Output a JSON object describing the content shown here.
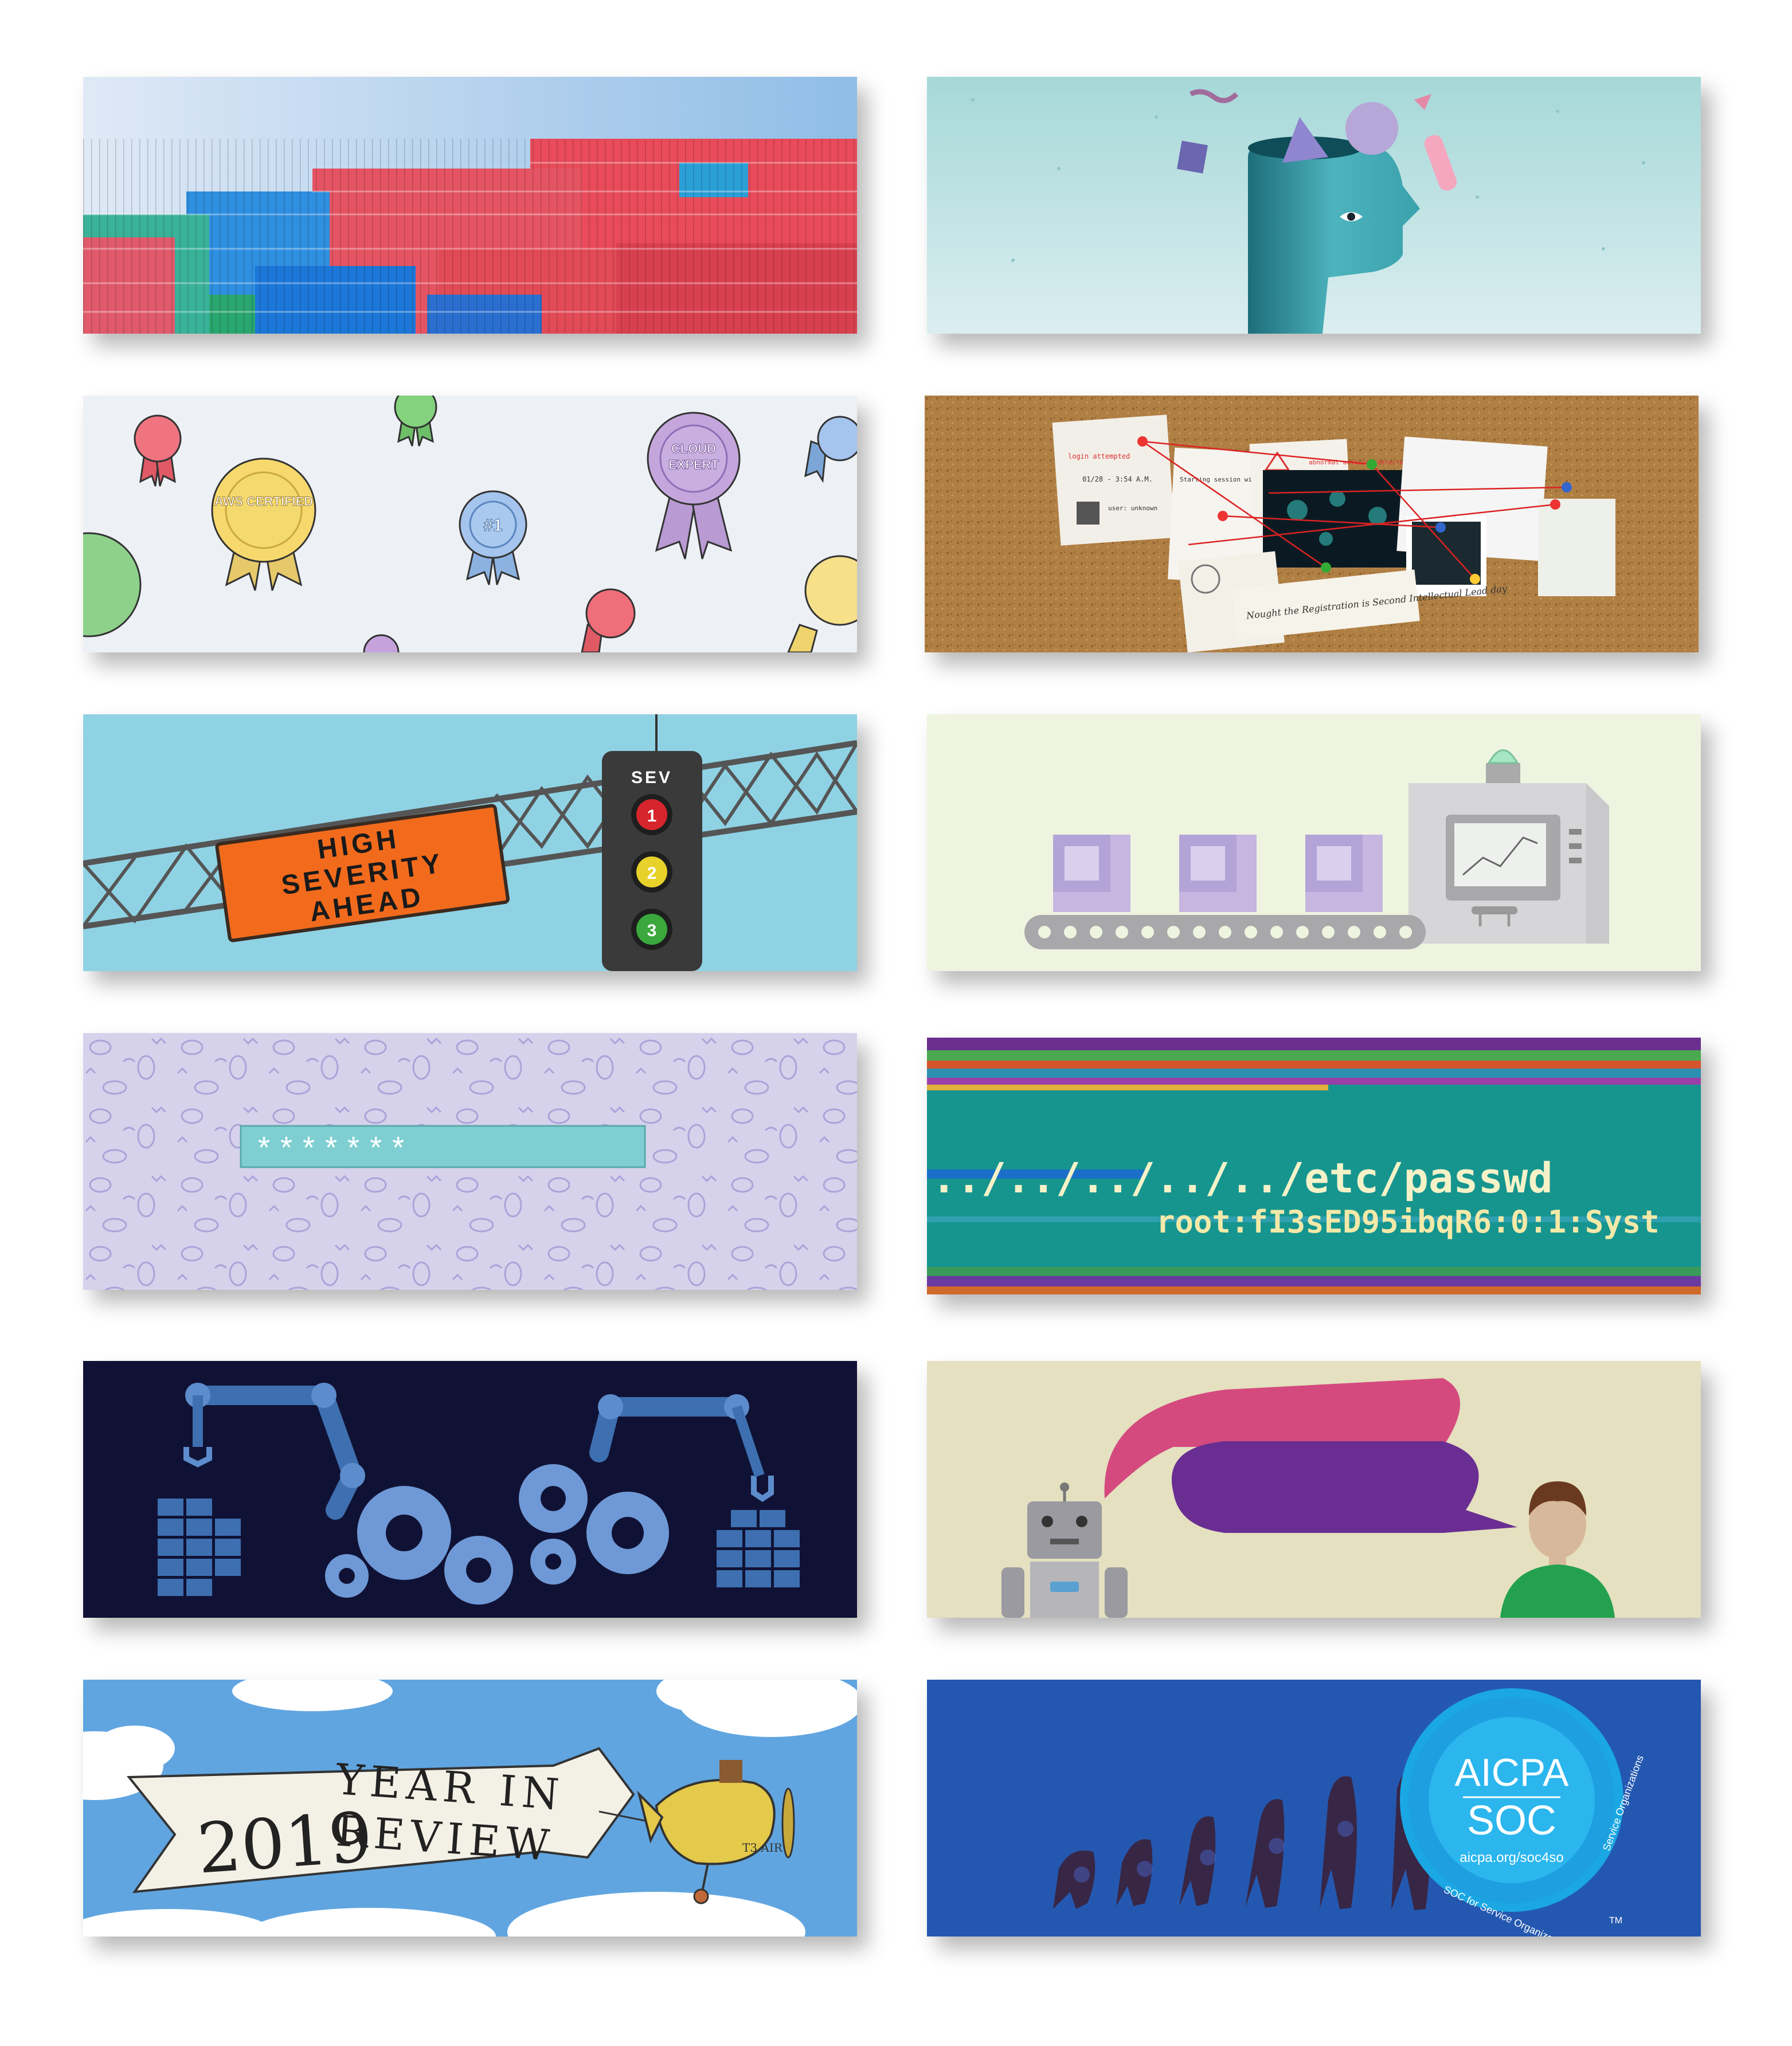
{
  "cards": {
    "severity": {
      "line1": "HIGH",
      "line2": "SEVERITY",
      "line3": "AHEAD",
      "light_title": "SEV",
      "levels": [
        "1",
        "2",
        "3"
      ]
    },
    "password": {
      "masked": "*******"
    },
    "passwd": {
      "path": "../../../../../etc/passwd",
      "output": "root:fI3sED95ibqR6:0:1:Syst"
    },
    "review": {
      "year": "2019",
      "word1": "YEAR IN",
      "word2": "REVIEW",
      "plane": "T3 AIR"
    },
    "certified": {
      "aws": "AWS CERTIFIED",
      "cloud1": "CLOUD",
      "cloud2": "EXPERT",
      "number": "#1"
    },
    "soc": {
      "title": "AICPA",
      "subtitle": "SOC",
      "url": "aicpa.org/soc4so",
      "ring_left": "SOC for Service Organizations",
      "ring_right": "Service Organizations",
      "tm": "TM"
    },
    "evidence": {
      "note1": "login attempted",
      "note1_time": "01/28 - 3:54 A.M.",
      "note1_user": "user: unknown",
      "note2": "abnormal activity detected",
      "note3": "Starting session with SessionID",
      "caption": "Nought the Registration is Second Intellectual Lead day"
    }
  },
  "colors": {
    "containers_sky": "#9ec6ea",
    "head_bg": "#a5d8d8",
    "ribbons_bg": "#edf1f6",
    "cork": "#ad7f45",
    "sev_bg": "#8fd2e4",
    "sign": "#f26b1d",
    "factory_bg": "#eef4e0",
    "password_bg": "#d4d0ea",
    "passwd_bg": "#16958f",
    "robots_bg": "#101235",
    "chat_bg": "#e4e0c0",
    "sky": "#60a5e0",
    "soc_bg": "#2458b0"
  }
}
